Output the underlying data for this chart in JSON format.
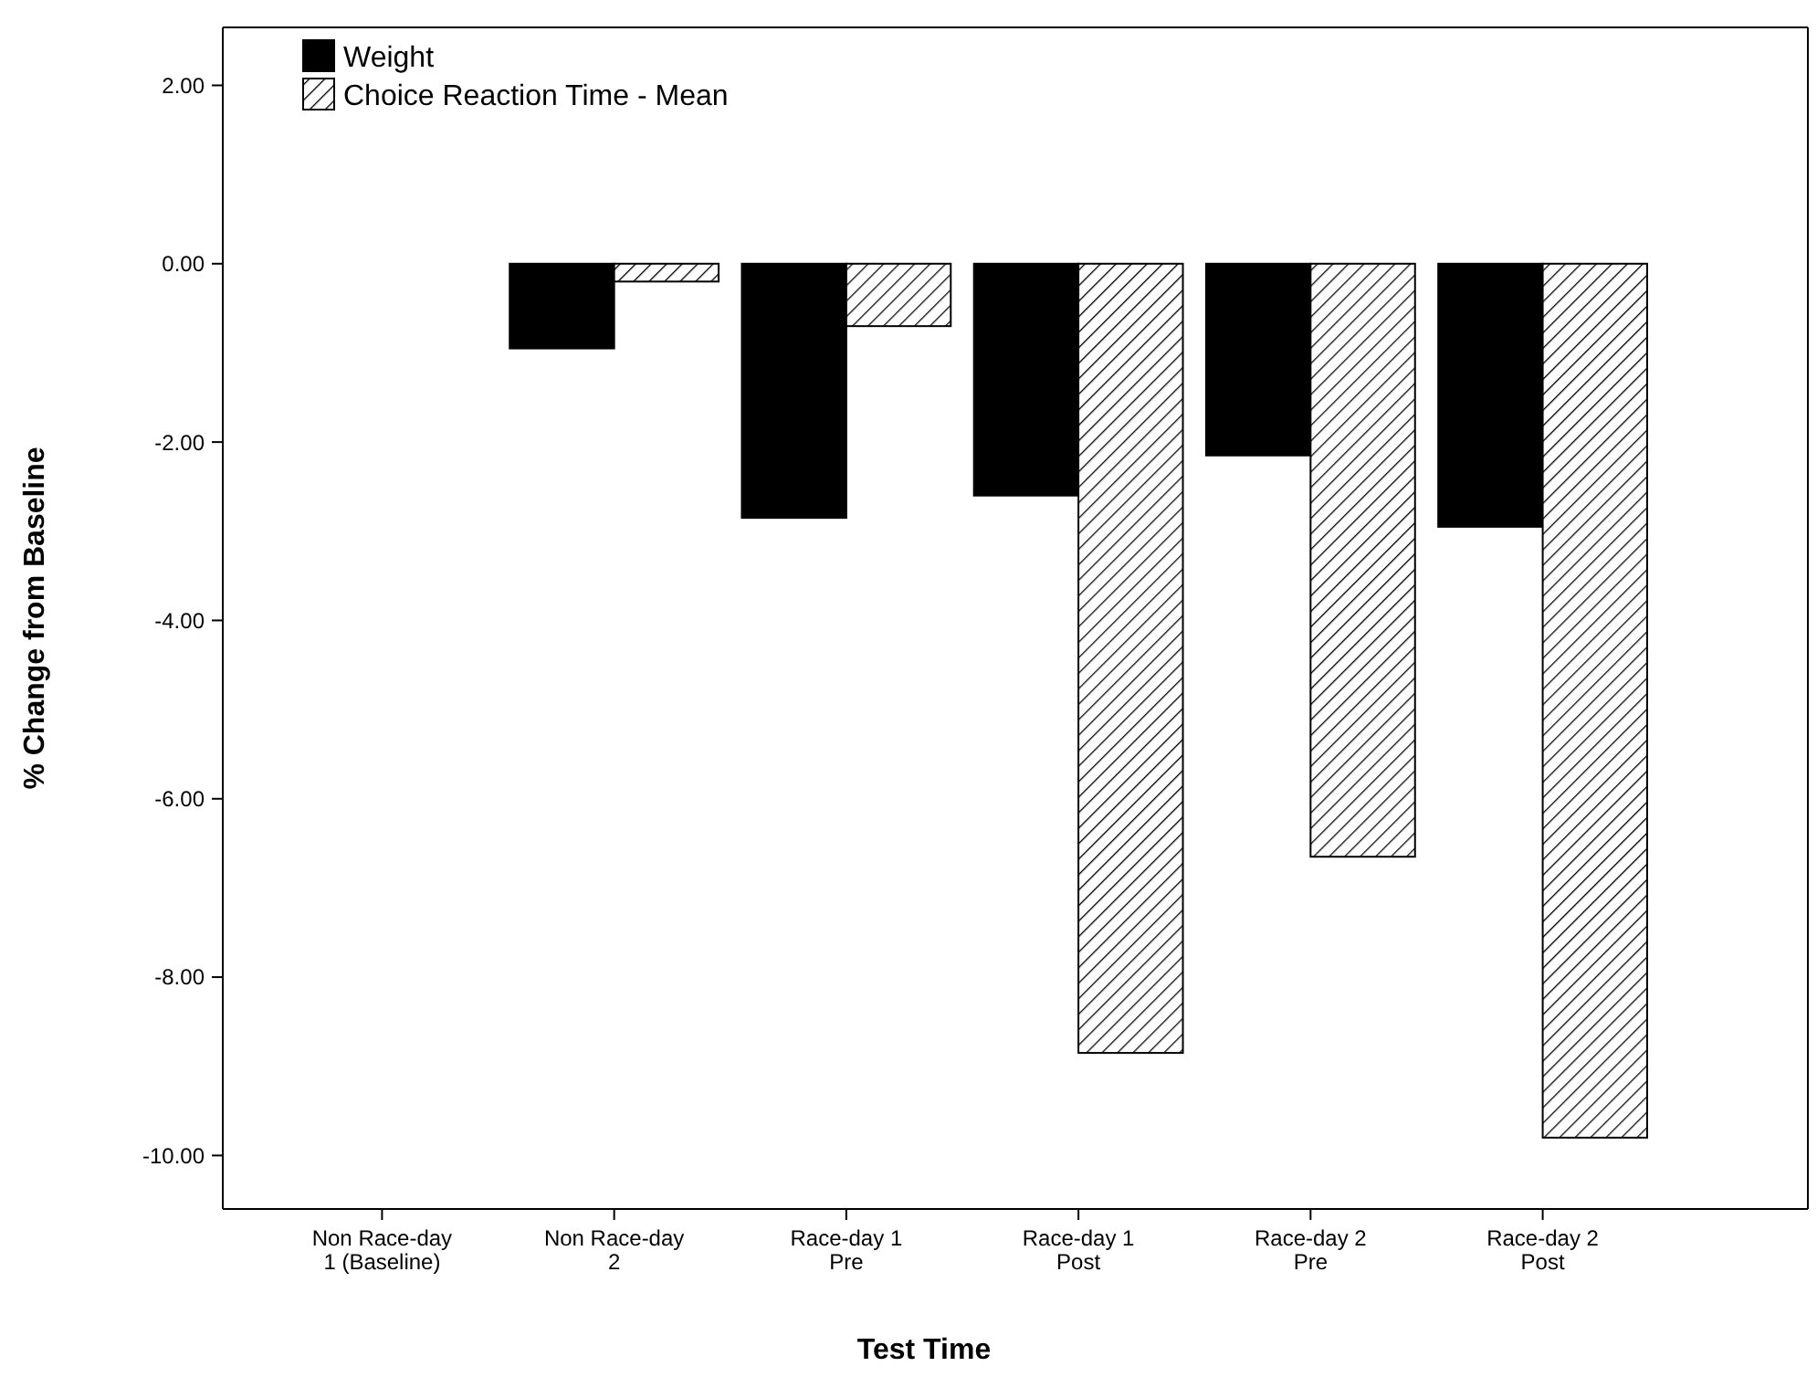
{
  "chart_data": {
    "type": "bar",
    "xlabel": "Test Time",
    "ylabel": "% Change from Baseline",
    "categories": [
      "Non Race-day\n1 (Baseline)",
      "Non Race-day\n2",
      "Race-day 1\nPre",
      "Race-day 1\nPost",
      "Race-day 2\nPre",
      "Race-day 2\nPost"
    ],
    "series": [
      {
        "name": "Weight",
        "color": "#000000",
        "values": [
          0,
          -0.95,
          -2.85,
          -2.6,
          -2.15,
          -2.95
        ]
      },
      {
        "name": "Choice Reaction Time - Mean",
        "color": "#000000",
        "values": [
          0,
          -0.2,
          -0.7,
          -8.85,
          -6.65,
          -9.8
        ]
      }
    ],
    "ylim": [
      -10.6,
      2.65
    ],
    "yticks": [
      {
        "value": 2,
        "label": "2.00"
      },
      {
        "value": 0,
        "label": "0.00"
      },
      {
        "value": -2,
        "label": "-2.00"
      },
      {
        "value": -4,
        "label": "-4.00"
      },
      {
        "value": -6,
        "label": "-6.00"
      },
      {
        "value": -8,
        "label": "-8.00"
      },
      {
        "value": -10,
        "label": "-10.00"
      }
    ],
    "legend": "top left",
    "grid": false
  }
}
